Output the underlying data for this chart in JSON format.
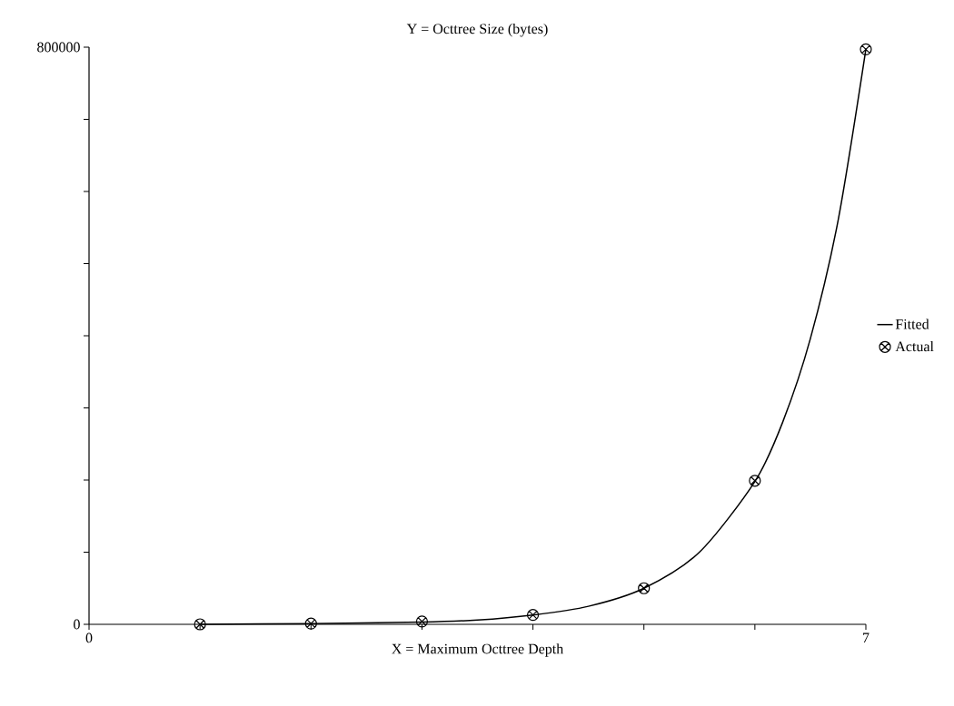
{
  "chart_data": {
    "type": "scatter",
    "ylabel": "Y = Octtree Size (bytes)",
    "xlabel": "X = Maximum Octtree Depth",
    "xlim": [
      0,
      7
    ],
    "ylim": [
      0,
      800000
    ],
    "xticks": [
      0,
      {
        "value": 1,
        "label": null
      },
      {
        "value": 2,
        "label": null
      },
      {
        "value": 3,
        "label": null
      },
      {
        "value": 4,
        "label": null
      },
      {
        "value": 5,
        "label": null
      },
      {
        "value": 6,
        "label": null
      },
      7
    ],
    "yticks": [
      0,
      {
        "value": 100000,
        "label": null
      },
      {
        "value": 200000,
        "label": null
      },
      {
        "value": 300000,
        "label": null
      },
      {
        "value": 400000,
        "label": null
      },
      {
        "value": 500000,
        "label": null
      },
      {
        "value": 600000,
        "label": null
      },
      {
        "value": 700000,
        "label": null
      },
      800000
    ],
    "legend": "right",
    "grid": false,
    "series": [
      {
        "name": "Fitted",
        "type": "line",
        "color": "#000000",
        "marker": "none",
        "line_style": "solid",
        "x": [
          1,
          2,
          3,
          3.5,
          4,
          4.5,
          5,
          5.5,
          6,
          6.25,
          6.5,
          6.75,
          7
        ],
        "values": [
          0,
          1000,
          3000,
          6000,
          13000,
          25000,
          50000,
          100000,
          198000,
          280000,
          396000,
          560000,
          797000
        ]
      },
      {
        "name": "Actual",
        "color": "#000000",
        "marker": "cross",
        "x": [
          1,
          2,
          3,
          4,
          5,
          6,
          7
        ],
        "values": [
          0,
          1000,
          4000,
          13000,
          50000,
          199000,
          797000
        ]
      }
    ]
  }
}
